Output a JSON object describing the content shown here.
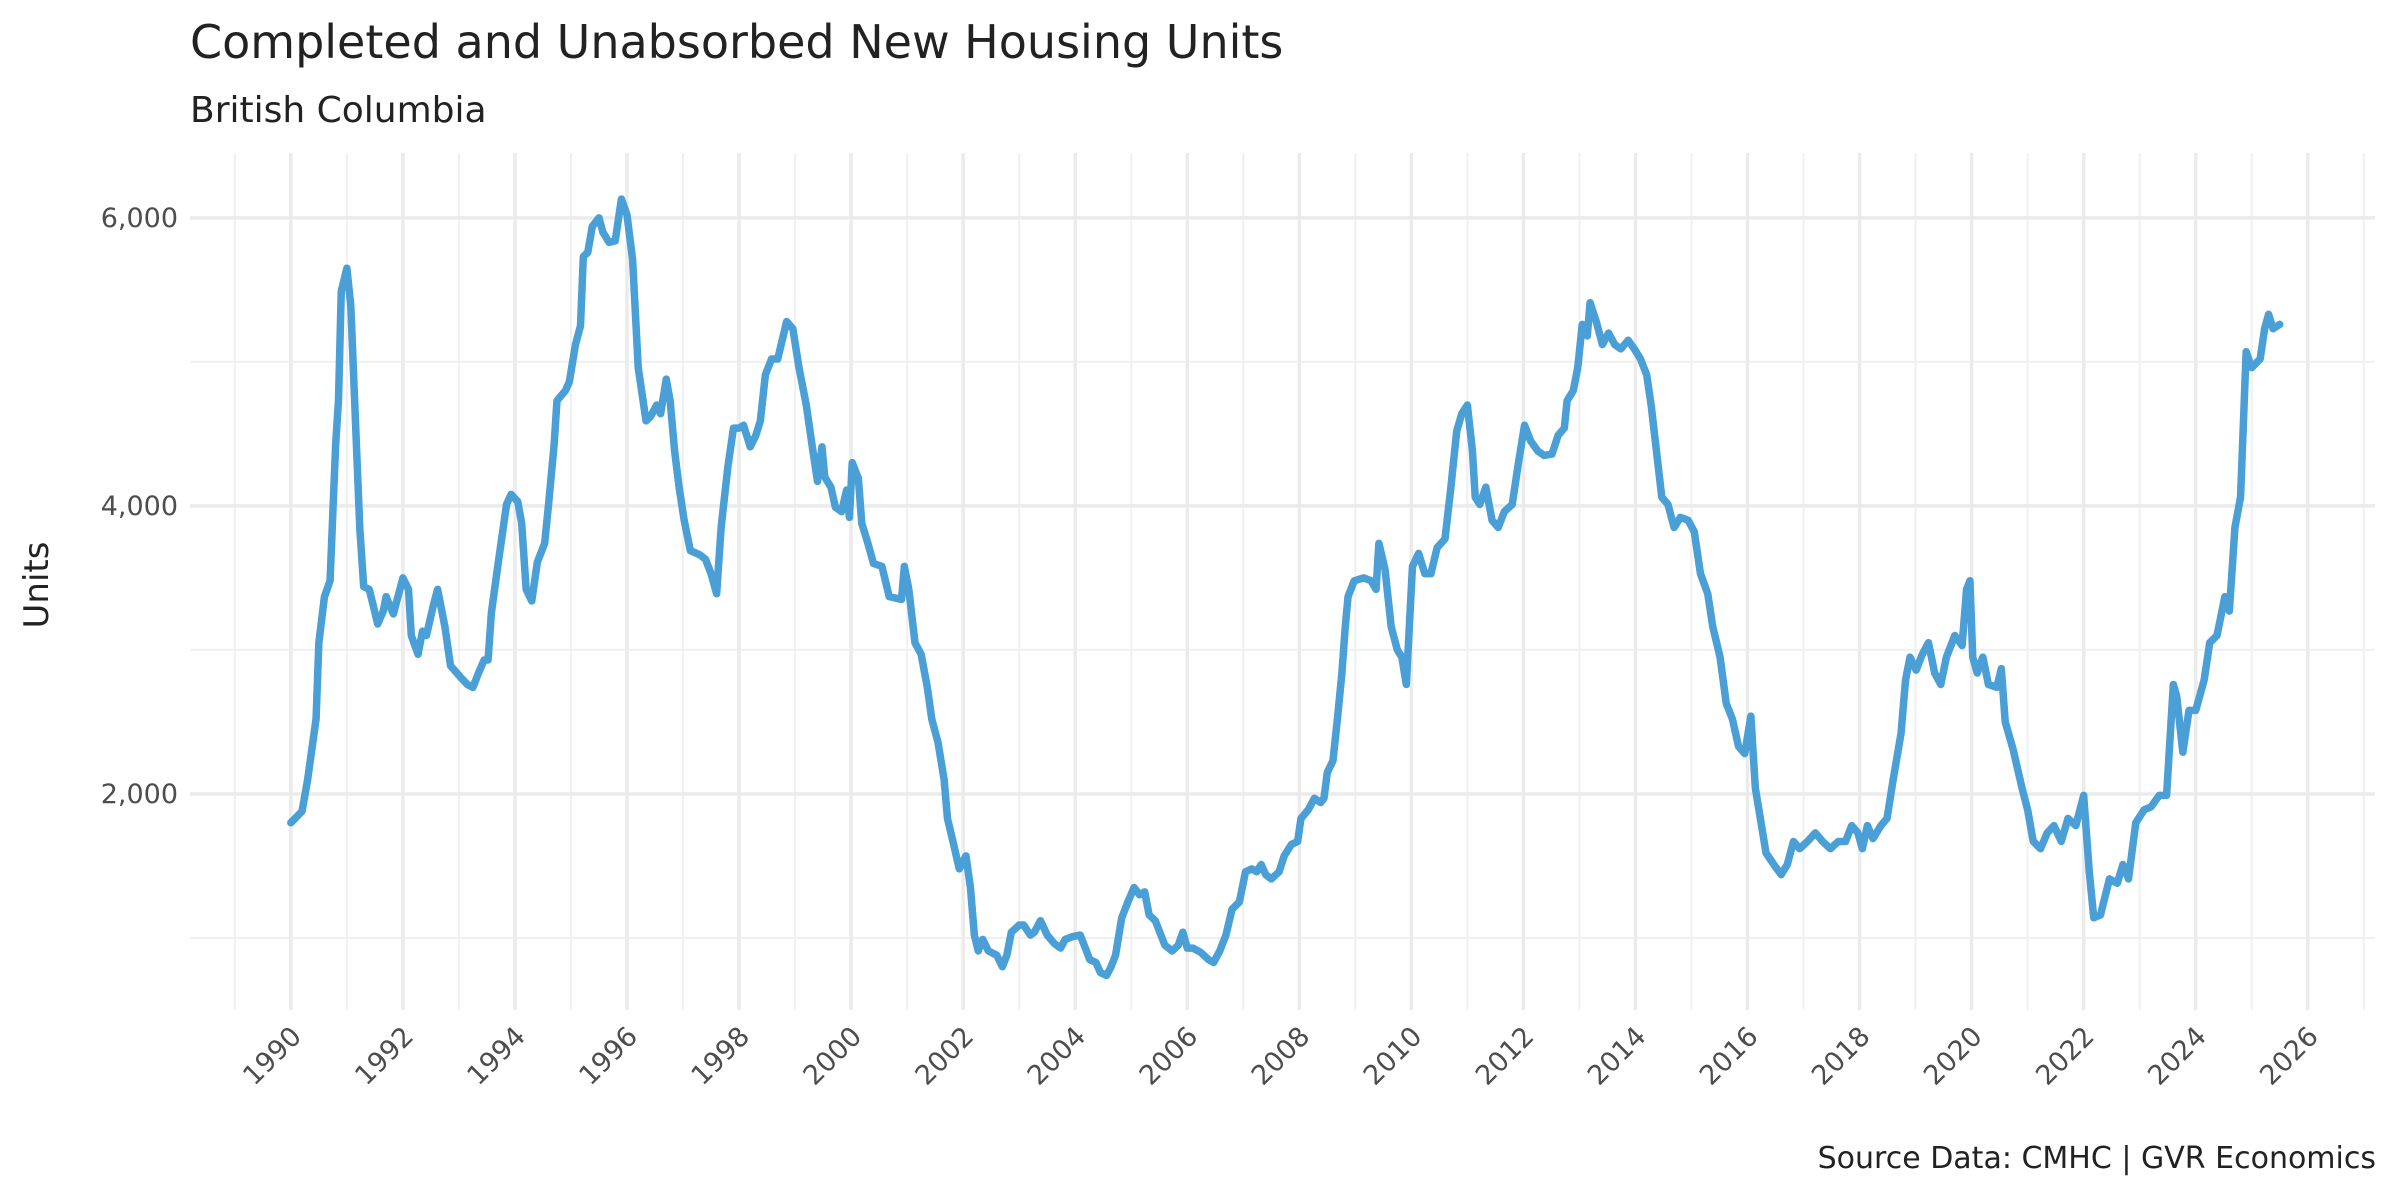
{
  "chart_data": {
    "type": "line",
    "title": "Completed and Unabsorbed New Housing Units",
    "subtitle": "British Columbia",
    "y_label": "Units",
    "source": "Source Data: CMHC | GVR Economics",
    "color": "#4a9fd6",
    "grid": true,
    "xlim": [
      1988.2,
      2027.2
    ],
    "xticks": [
      1990,
      1992,
      1994,
      1996,
      1998,
      2000,
      2002,
      2004,
      2006,
      2008,
      2010,
      2012,
      2014,
      2016,
      2018,
      2020,
      2022,
      2024,
      2026
    ],
    "xminorticks": [
      1989,
      1991,
      1993,
      1995,
      1997,
      1999,
      2001,
      2003,
      2005,
      2007,
      2009,
      2011,
      2013,
      2015,
      2017,
      2019,
      2021,
      2023,
      2025,
      2027
    ],
    "ylim": [
      500,
      6450
    ],
    "yticks": [
      {
        "value": 2000,
        "label": "2,000"
      },
      {
        "value": 4000,
        "label": "4,000"
      },
      {
        "value": 6000,
        "label": "6,000"
      }
    ],
    "yminorticks": [
      1000,
      3000,
      5000
    ],
    "x": [
      1990.0,
      1990.2,
      1990.3,
      1990.45,
      1990.5,
      1990.6,
      1990.7,
      1990.8,
      1990.85,
      1990.9,
      1991.0,
      1991.07,
      1991.23,
      1991.3,
      1991.4,
      1991.55,
      1991.65,
      1991.7,
      1991.83,
      1992.0,
      1992.1,
      1992.15,
      1992.27,
      1992.35,
      1992.42,
      1992.55,
      1992.62,
      1992.75,
      1992.85,
      1993.03,
      1993.15,
      1993.25,
      1993.35,
      1993.45,
      1993.52,
      1993.58,
      1993.7,
      1993.85,
      1993.93,
      1994.05,
      1994.12,
      1994.2,
      1994.3,
      1994.4,
      1994.53,
      1994.6,
      1994.7,
      1994.75,
      1994.9,
      1994.97,
      1995.08,
      1995.17,
      1995.22,
      1995.3,
      1995.38,
      1995.5,
      1995.57,
      1995.68,
      1995.79,
      1995.9,
      1996.0,
      1996.1,
      1996.2,
      1996.34,
      1996.42,
      1996.53,
      1996.6,
      1996.7,
      1996.77,
      1996.85,
      1996.93,
      1997.02,
      1997.13,
      1997.3,
      1997.4,
      1997.5,
      1997.6,
      1997.68,
      1997.8,
      1997.9,
      1998.0,
      1998.08,
      1998.2,
      1998.3,
      1998.38,
      1998.47,
      1998.58,
      1998.69,
      1998.77,
      1998.85,
      1998.96,
      1999.07,
      1999.2,
      1999.3,
      1999.4,
      1999.48,
      1999.53,
      1999.64,
      1999.72,
      1999.83,
      1999.92,
      1999.97,
      2000.02,
      2000.13,
      2000.19,
      2000.3,
      2000.4,
      2000.55,
      2000.68,
      2000.9,
      2000.95,
      2001.03,
      2001.14,
      2001.25,
      2001.36,
      2001.44,
      2001.55,
      2001.66,
      2001.72,
      2001.83,
      2001.93,
      2002.05,
      2002.13,
      2002.2,
      2002.27,
      2002.35,
      2002.45,
      2002.6,
      2002.7,
      2002.78,
      2002.86,
      2003.0,
      2003.08,
      2003.2,
      2003.27,
      2003.38,
      2003.5,
      2003.63,
      2003.74,
      2003.82,
      2003.96,
      2004.09,
      2004.18,
      2004.26,
      2004.37,
      2004.45,
      2004.56,
      2004.64,
      2004.72,
      2004.83,
      2004.94,
      2005.05,
      2005.15,
      2005.24,
      2005.32,
      2005.43,
      2005.6,
      2005.73,
      2005.84,
      2005.92,
      2006.0,
      2006.1,
      2006.24,
      2006.38,
      2006.47,
      2006.58,
      2006.69,
      2006.8,
      2006.93,
      2007.04,
      2007.15,
      2007.24,
      2007.32,
      2007.4,
      2007.5,
      2007.64,
      2007.73,
      2007.86,
      2007.97,
      2008.03,
      2008.16,
      2008.27,
      2008.38,
      2008.44,
      2008.5,
      2008.6,
      2008.68,
      2008.76,
      2008.82,
      2008.87,
      2008.98,
      2009.15,
      2009.28,
      2009.37,
      2009.42,
      2009.53,
      2009.64,
      2009.75,
      2009.83,
      2009.91,
      2009.97,
      2010.02,
      2010.13,
      2010.24,
      2010.35,
      2010.46,
      2010.6,
      2010.7,
      2010.81,
      2010.9,
      2011.0,
      2011.09,
      2011.14,
      2011.22,
      2011.33,
      2011.44,
      2011.55,
      2011.66,
      2011.8,
      2011.9,
      2012.02,
      2012.13,
      2012.26,
      2012.37,
      2012.51,
      2012.62,
      2012.73,
      2012.78,
      2012.89,
      2012.97,
      2013.05,
      2013.14,
      2013.19,
      2013.3,
      2013.41,
      2013.52,
      2013.63,
      2013.74,
      2013.87,
      2013.98,
      2014.09,
      2014.2,
      2014.28,
      2014.36,
      2014.47,
      2014.58,
      2014.69,
      2014.8,
      2014.94,
      2015.05,
      2015.16,
      2015.29,
      2015.38,
      2015.51,
      2015.62,
      2015.73,
      2015.84,
      2015.95,
      2016.06,
      2016.14,
      2016.25,
      2016.33,
      2016.47,
      2016.6,
      2016.71,
      2016.82,
      2016.93,
      2017.07,
      2017.21,
      2017.34,
      2017.48,
      2017.62,
      2017.75,
      2017.86,
      2017.97,
      2018.05,
      2018.14,
      2018.24,
      2018.38,
      2018.49,
      2018.6,
      2018.74,
      2018.82,
      2018.9,
      2019.01,
      2019.12,
      2019.23,
      2019.34,
      2019.45,
      2019.55,
      2019.7,
      2019.83,
      2019.91,
      2019.97,
      2020.02,
      2020.1,
      2020.2,
      2020.3,
      2020.45,
      2020.53,
      2020.6,
      2020.74,
      2020.9,
      2021.0,
      2021.1,
      2021.23,
      2021.35,
      2021.47,
      2021.6,
      2021.72,
      2021.86,
      2022.0,
      2022.1,
      2022.18,
      2022.3,
      2022.46,
      2022.6,
      2022.7,
      2022.8,
      2022.93,
      2023.08,
      2023.2,
      2023.35,
      2023.48,
      2023.6,
      2023.66,
      2023.77,
      2023.88,
      2024.0,
      2024.15,
      2024.25,
      2024.38,
      2024.52,
      2024.6,
      2024.7,
      2024.8,
      2024.9,
      2025.0,
      2025.15,
      2025.23,
      2025.3,
      2025.38,
      2025.5
    ],
    "values": [
      1800,
      1880,
      2100,
      2520,
      3050,
      3370,
      3480,
      4430,
      4730,
      5490,
      5650,
      5390,
      3850,
      3440,
      3420,
      3180,
      3270,
      3370,
      3250,
      3500,
      3420,
      3100,
      2970,
      3130,
      3100,
      3320,
      3420,
      3160,
      2890,
      2810,
      2760,
      2740,
      2840,
      2930,
      2930,
      3260,
      3600,
      4010,
      4080,
      4030,
      3880,
      3420,
      3340,
      3610,
      3740,
      4010,
      4430,
      4730,
      4800,
      4860,
      5120,
      5250,
      5730,
      5760,
      5940,
      6000,
      5900,
      5830,
      5840,
      6130,
      6020,
      5710,
      4960,
      4590,
      4620,
      4700,
      4640,
      4880,
      4730,
      4380,
      4130,
      3900,
      3690,
      3660,
      3630,
      3530,
      3390,
      3850,
      4270,
      4540,
      4540,
      4560,
      4410,
      4490,
      4590,
      4910,
      5020,
      5020,
      5150,
      5280,
      5230,
      4960,
      4700,
      4430,
      4170,
      4410,
      4200,
      4130,
      3990,
      3960,
      4110,
      3920,
      4300,
      4190,
      3880,
      3740,
      3600,
      3580,
      3370,
      3350,
      3580,
      3420,
      3050,
      2970,
      2740,
      2520,
      2360,
      2100,
      1830,
      1650,
      1480,
      1570,
      1350,
      1020,
      910,
      990,
      910,
      880,
      800,
      880,
      1040,
      1090,
      1090,
      1020,
      1040,
      1120,
      1020,
      960,
      930,
      990,
      1010,
      1020,
      930,
      850,
      830,
      760,
      740,
      800,
      880,
      1140,
      1250,
      1350,
      1300,
      1320,
      1160,
      1120,
      950,
      910,
      950,
      1040,
      930,
      930,
      900,
      850,
      830,
      910,
      1020,
      1200,
      1250,
      1460,
      1480,
      1460,
      1510,
      1440,
      1410,
      1460,
      1570,
      1650,
      1670,
      1830,
      1890,
      1970,
      1940,
      1970,
      2150,
      2230,
      2520,
      2840,
      3160,
      3370,
      3480,
      3500,
      3480,
      3420,
      3740,
      3560,
      3160,
      3000,
      2950,
      2760,
      3210,
      3580,
      3670,
      3530,
      3530,
      3710,
      3770,
      4110,
      4520,
      4640,
      4700,
      4380,
      4060,
      4010,
      4130,
      3900,
      3850,
      3960,
      4010,
      4270,
      4560,
      4450,
      4380,
      4350,
      4360,
      4490,
      4540,
      4730,
      4800,
      4960,
      5260,
      5180,
      5410,
      5280,
      5120,
      5200,
      5120,
      5090,
      5150,
      5090,
      5020,
      4910,
      4700,
      4430,
      4060,
      4010,
      3850,
      3920,
      3900,
      3820,
      3530,
      3390,
      3160,
      2950,
      2630,
      2520,
      2330,
      2280,
      2540,
      2040,
      1780,
      1590,
      1510,
      1440,
      1510,
      1670,
      1620,
      1670,
      1730,
      1670,
      1620,
      1670,
      1670,
      1780,
      1730,
      1620,
      1780,
      1690,
      1780,
      1830,
      2100,
      2420,
      2790,
      2950,
      2860,
      2970,
      3050,
      2840,
      2760,
      2950,
      3100,
      3030,
      3420,
      3480,
      2950,
      2840,
      2950,
      2760,
      2740,
      2870,
      2500,
      2310,
      2040,
      1890,
      1670,
      1620,
      1730,
      1780,
      1670,
      1830,
      1780,
      1990,
      1460,
      1140,
      1160,
      1410,
      1380,
      1510,
      1410,
      1800,
      1890,
      1910,
      1990,
      1990,
      2760,
      2680,
      2290,
      2580,
      2580,
      2790,
      3050,
      3100,
      3370,
      3270,
      3850,
      4060,
      5070,
      4960,
      5020,
      5230,
      5330,
      5230,
      5260
    ]
  }
}
